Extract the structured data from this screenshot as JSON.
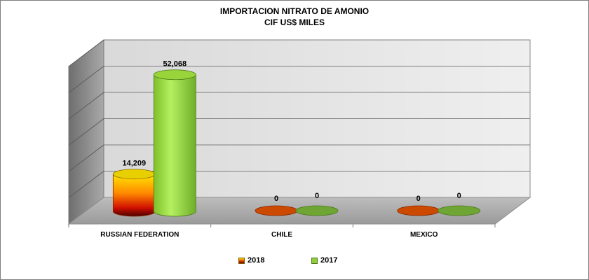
{
  "chart_data": {
    "type": "bar",
    "title": "IMPORTACION NITRATO DE AMONIO",
    "subtitle": "CIF US$ MILES",
    "categories": [
      "RUSSIAN FEDERATION",
      "CHILE",
      "MEXICO"
    ],
    "series": [
      {
        "name": "2018",
        "values": [
          14209,
          0,
          0
        ],
        "data_labels": [
          "14,209",
          "0",
          "0"
        ],
        "color": "#e24a00"
      },
      {
        "name": "2017",
        "values": [
          52068,
          0,
          0
        ],
        "data_labels": [
          "52,068",
          "0",
          "0"
        ],
        "color": "#8fce3a"
      }
    ],
    "ylim": [
      0,
      60000
    ],
    "grid": true,
    "legend_position": "bottom",
    "style": "3d-cylinder"
  }
}
